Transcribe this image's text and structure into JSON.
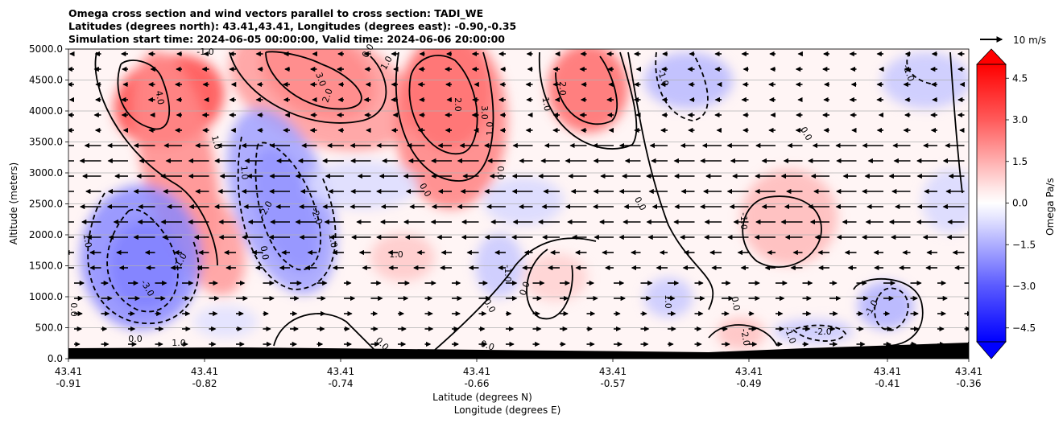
{
  "title_lines": [
    "Omega cross section and wind vectors parallel to cross section: TADI_WE",
    "Latitudes (degrees north): 43.41,43.41, Longitudes (degrees east): -0.90,-0.35",
    "Simulation start time: 2024-06-05 00:00:00, Valid time: 2024-06-06 20:00:00"
  ],
  "chart_data": {
    "type": "heatmap",
    "ylabel": "Altitude (meters)",
    "xlabel_lines": [
      "Latitude (degrees N)",
      "Longitude (degrees E)"
    ],
    "colorbar_label": "Omega Pa/s",
    "quiver_key_label": "10 m/s",
    "ylim": [
      0,
      5000
    ],
    "y_ticks": [
      "0.0",
      "500.0",
      "1000.0",
      "1500.0",
      "2000.0",
      "2500.0",
      "3000.0",
      "3500.0",
      "4000.0",
      "4500.0",
      "5000.0"
    ],
    "x_ticks": [
      {
        "lat": "43.41",
        "lon": "-0.91"
      },
      {
        "lat": "43.41",
        "lon": "-0.82"
      },
      {
        "lat": "43.41",
        "lon": "-0.74"
      },
      {
        "lat": "43.41",
        "lon": "-0.66"
      },
      {
        "lat": "43.41",
        "lon": "-0.57"
      },
      {
        "lat": "43.41",
        "lon": "-0.49"
      },
      {
        "lat": "43.41",
        "lon": "-0.41"
      },
      {
        "lat": "43.41",
        "lon": "-0.36"
      }
    ],
    "colorbar_range": [
      -5,
      5
    ],
    "colorbar_ticks": [
      "4.5",
      "3.0",
      "1.5",
      "0.0",
      "−1.5",
      "−3.0",
      "−4.5"
    ],
    "contour_labels": [
      "-1.0",
      "0.0",
      "1.0",
      "2.0",
      "3.0",
      "4.0",
      "-2.0",
      "-3.0"
    ],
    "ground_label": "1.0",
    "midfield_label": "1.0",
    "colors": {
      "positive": "#ff0000",
      "negative": "#0000ff",
      "neutral": "#ffffff",
      "terrain": "#000000"
    },
    "grid": true
  }
}
